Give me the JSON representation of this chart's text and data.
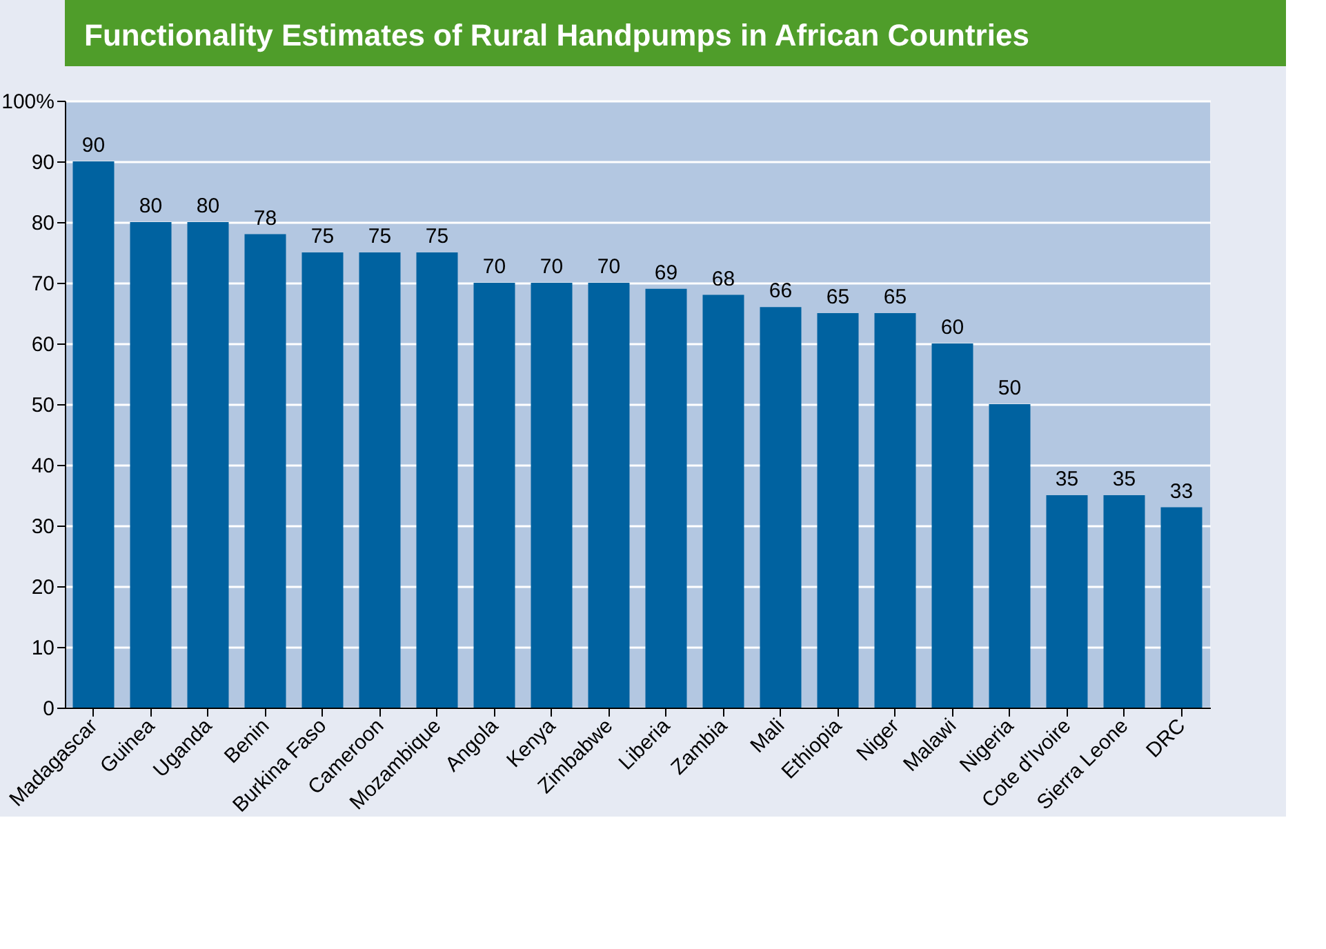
{
  "chart_data": {
    "type": "bar",
    "title": "Functionality Estimates of Rural Handpumps in African Countries",
    "categories": [
      "Madagascar",
      "Guinea",
      "Uganda",
      "Benin",
      "Burkina Faso",
      "Cameroon",
      "Mozambique",
      "Angola",
      "Kenya",
      "Zimbabwe",
      "Liberia",
      "Zambia",
      "Mali",
      "Ethiopia",
      "Niger",
      "Malawi",
      "Nigeria",
      "Cote d'Ivoire",
      "Sierra Leone",
      "DRC"
    ],
    "values": [
      90,
      80,
      80,
      78,
      75,
      75,
      75,
      70,
      70,
      70,
      69,
      68,
      66,
      65,
      65,
      60,
      50,
      35,
      35,
      33
    ],
    "color": "#0062a0",
    "ylim": [
      0,
      100
    ],
    "yticks": [
      0,
      10,
      20,
      30,
      40,
      50,
      60,
      70,
      80,
      90,
      {
        "value": 100,
        "label": "100%"
      }
    ],
    "grid": "y",
    "data_labels": true
  }
}
